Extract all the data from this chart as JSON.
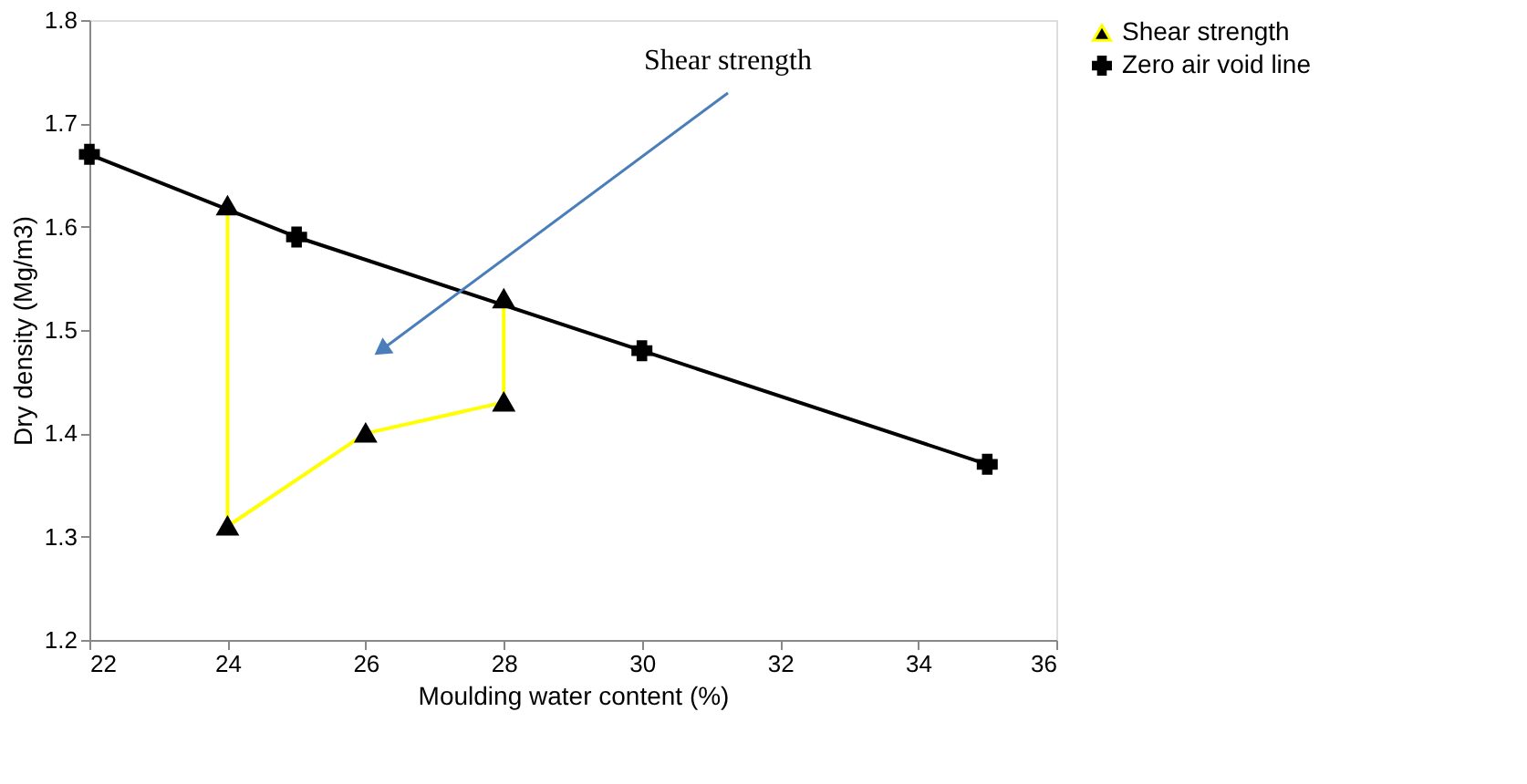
{
  "chart_data": {
    "type": "line",
    "xlabel": "Moulding water content  (%)",
    "ylabel": "Dry density (Mg/m3)",
    "series": [
      {
        "name": "Shear strength",
        "color": "#ffff00",
        "marker": "triangle",
        "x": [
          24,
          24,
          26,
          28,
          28
        ],
        "values": [
          1.62,
          1.31,
          1.4,
          1.43,
          1.53
        ]
      },
      {
        "name": "Zero air void line",
        "color": "#000000",
        "marker": "cross",
        "x": [
          22,
          25,
          30,
          35
        ],
        "values": [
          1.67,
          1.59,
          1.48,
          1.37
        ]
      }
    ],
    "xlim": [
      22,
      36
    ],
    "xticks": [
      22,
      24,
      26,
      28,
      30,
      32,
      34,
      36
    ],
    "ylim": [
      1.2,
      1.8
    ],
    "yticks": [
      {
        "value": 1.2,
        "label": "1.2"
      },
      {
        "value": 1.3,
        "label": "1.3"
      },
      {
        "value": 1.4,
        "label": "1.4"
      },
      {
        "value": 1.5,
        "label": "1.5"
      },
      {
        "value": 1.6,
        "label": "1.6"
      },
      {
        "value": 1.7,
        "label": "1.7"
      },
      {
        "value": 1.8,
        "label": "1.8"
      }
    ],
    "grid": false,
    "legend": "right",
    "annotations": [
      "Shear strength"
    ]
  }
}
